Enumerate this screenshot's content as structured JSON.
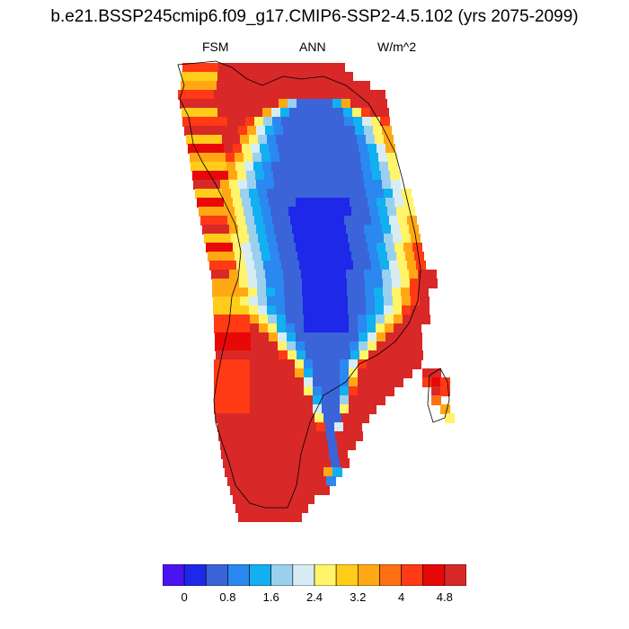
{
  "title": "b.e21.BSSP245cmip6.f09_g17.CMIP6-SSP2-4.5.102 (yrs 2075-2099)",
  "subheading": {
    "left": "FSM",
    "center": "ANN",
    "right": "W/m^2"
  },
  "colorbar": {
    "colors": [
      "#4a14f0",
      "#1e28e8",
      "#3a64d8",
      "#2a88f0",
      "#12b0f0",
      "#9ad0ee",
      "#d8ecf4",
      "#fff46a",
      "#ffcc1a",
      "#ffa814",
      "#ff7014",
      "#ff3a14",
      "#e80808",
      "#d82828"
    ],
    "labels": [
      "0",
      "0.8",
      "1.6",
      "2.4",
      "3.2",
      "4",
      "4.8"
    ]
  },
  "map": {
    "region": "Greenland",
    "cell_values_colour_index_by_row": []
  }
}
